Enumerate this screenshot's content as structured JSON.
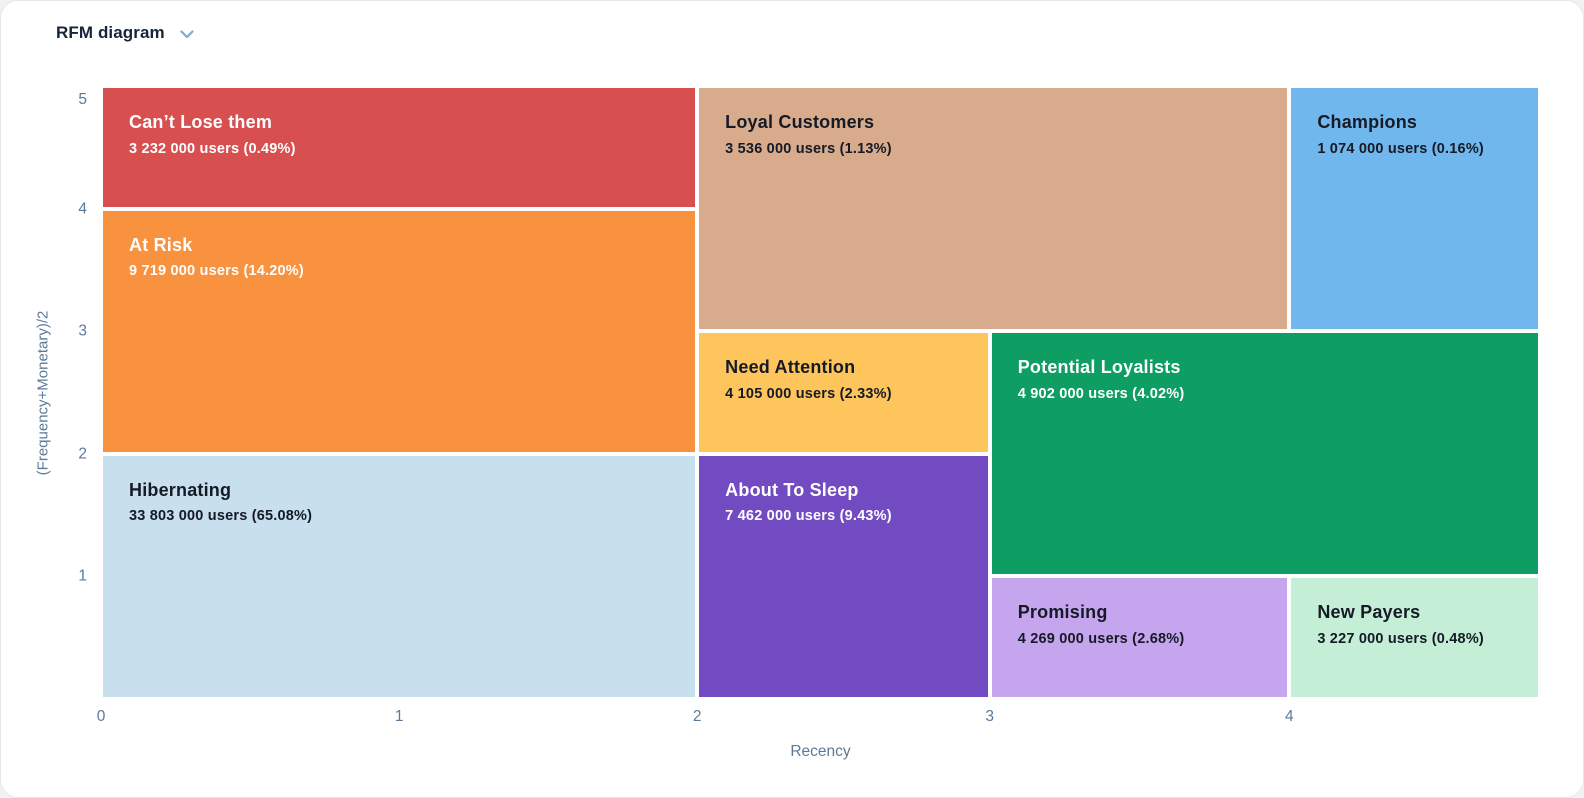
{
  "header": {
    "title": "RFM diagram"
  },
  "chart_data": {
    "type": "treemap",
    "title": "RFM diagram",
    "xlabel": "Recency",
    "ylabel": "(Frequency+Monetary)/2",
    "x_ticks": [
      0,
      1,
      2,
      3,
      4
    ],
    "y_ticks": [
      5,
      4,
      3,
      2,
      1
    ],
    "x_range": [
      0,
      5
    ],
    "y_range": [
      0,
      5
    ],
    "grid": false,
    "axis_color": "#5b7a99",
    "x_scale_pct": {
      "0": 0,
      "1": 20.72,
      "2": 41.43,
      "3": 61.76,
      "4": 82.58,
      "5": 100
    },
    "segments": [
      {
        "name": "Can’t Lose them",
        "users": 3232000,
        "pct": 0.49,
        "users_label": "3 232 000 users (0.49%)",
        "x0": 0,
        "x1": 2,
        "y0": 4,
        "y1": 5,
        "color": "#d84f50",
        "text_color": "#ffffff"
      },
      {
        "name": "Loyal Customers",
        "users": 3536000,
        "pct": 1.13,
        "users_label": "3 536 000 users (1.13%)",
        "x0": 2,
        "x1": 4,
        "y0": 3,
        "y1": 5,
        "color": "#d7ab8c",
        "text_color": "#151a26"
      },
      {
        "name": "Champions",
        "users": 1074000,
        "pct": 0.16,
        "users_label": "1 074 000 users (0.16%)",
        "x0": 4,
        "x1": 5,
        "y0": 3,
        "y1": 5,
        "color": "#70b7ee",
        "text_color": "#151a26"
      },
      {
        "name": "At Risk",
        "users": 9719000,
        "pct": 14.2,
        "users_label": "9 719 000 users (14.20%)",
        "x0": 0,
        "x1": 2,
        "y0": 2,
        "y1": 4,
        "color": "#f9923f",
        "text_color": "#ffffff"
      },
      {
        "name": "Need Attention",
        "users": 4105000,
        "pct": 2.33,
        "users_label": "4 105 000 users (2.33%)",
        "x0": 2,
        "x1": 3,
        "y0": 2,
        "y1": 3,
        "color": "#fdc55c",
        "text_color": "#151a26"
      },
      {
        "name": "Potential Loyalists",
        "users": 4902000,
        "pct": 4.02,
        "users_label": "4 902 000 users (4.02%)",
        "x0": 3,
        "x1": 5,
        "y0": 1,
        "y1": 3,
        "color": "#0e9e63",
        "text_color": "#ffffff"
      },
      {
        "name": "Hibernating",
        "users": 33803000,
        "pct": 65.08,
        "users_label": "33 803 000 users (65.08%)",
        "x0": 0,
        "x1": 2,
        "y0": 0,
        "y1": 2,
        "color": "#c8dfed",
        "text_color": "#151a26"
      },
      {
        "name": "About To Sleep",
        "users": 7462000,
        "pct": 9.43,
        "users_label": "7 462 000 users (9.43%)",
        "x0": 2,
        "x1": 3,
        "y0": 0,
        "y1": 2,
        "color": "#724bc3",
        "text_color": "#ffffff"
      },
      {
        "name": "Promising",
        "users": 4269000,
        "pct": 2.68,
        "users_label": "4 269 000 users (2.68%)",
        "x0": 3,
        "x1": 4,
        "y0": 0,
        "y1": 1,
        "color": "#c5a5ed",
        "text_color": "#151a26"
      },
      {
        "name": "New Payers",
        "users": 3227000,
        "pct": 0.48,
        "users_label": "3 227 000 users (0.48%)",
        "x0": 4,
        "x1": 5,
        "y0": 0,
        "y1": 1,
        "color": "#c4eed6",
        "text_color": "#151a26"
      }
    ]
  }
}
